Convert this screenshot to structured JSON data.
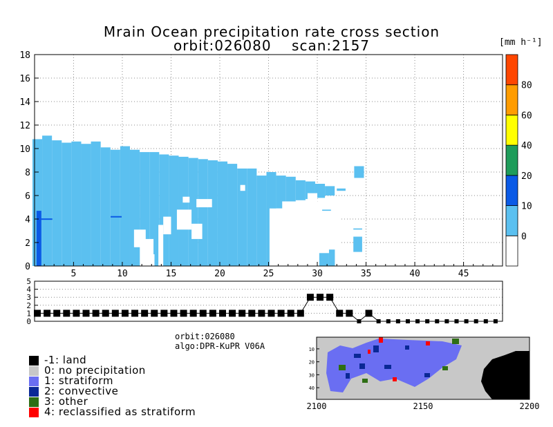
{
  "title_line1": "Mrain Ocean precipitation rate cross section",
  "title_line2": "orbit:026080    scan:2157",
  "colorbar": {
    "unit": "[mm h⁻¹]",
    "bands": [
      {
        "from": -10,
        "to": 0,
        "color": "#ffffff"
      },
      {
        "from": 0,
        "to": 10,
        "color": "#5bc0f0"
      },
      {
        "from": 10,
        "to": 20,
        "color": "#0a5ae6"
      },
      {
        "from": 20,
        "to": 40,
        "color": "#1e9c5a"
      },
      {
        "from": 40,
        "to": 60,
        "color": "#ffff00"
      },
      {
        "from": 60,
        "to": 80,
        "color": "#ff9c00"
      },
      {
        "from": 80,
        "to": 100,
        "color": "#ff4600"
      }
    ],
    "labels": [
      "0",
      "10",
      "20",
      "40",
      "60",
      "80"
    ],
    "label_values": [
      0,
      10,
      20,
      40,
      60,
      80
    ]
  },
  "chart_data": [
    {
      "type": "heatmap",
      "title": "Mrain Ocean precipitation rate cross section",
      "xlabel": "",
      "ylabel": "",
      "xlim": [
        1,
        49
      ],
      "ylim": [
        0,
        18
      ],
      "xticks": [
        5,
        10,
        15,
        20,
        25,
        30,
        35,
        40,
        45
      ],
      "yticks": [
        0,
        2,
        4,
        6,
        8,
        10,
        12,
        14,
        16,
        18
      ],
      "grid": true,
      "columns": [
        {
          "x": 1,
          "top": 10.8,
          "bottom": 0
        },
        {
          "x": 2,
          "top": 11.1,
          "bottom": 0
        },
        {
          "x": 3,
          "top": 10.7,
          "bottom": 0
        },
        {
          "x": 4,
          "top": 10.5,
          "bottom": 0
        },
        {
          "x": 5,
          "top": 10.6,
          "bottom": 0
        },
        {
          "x": 6,
          "top": 10.4,
          "bottom": 0
        },
        {
          "x": 7,
          "top": 10.6,
          "bottom": 0
        },
        {
          "x": 8,
          "top": 10.1,
          "bottom": 0
        },
        {
          "x": 9,
          "top": 9.9,
          "bottom": 0
        },
        {
          "x": 10,
          "top": 10.2,
          "bottom": 0
        },
        {
          "x": 11,
          "top": 9.9,
          "bottom": 0
        },
        {
          "x": 12,
          "top": 9.7,
          "bottom": 0
        },
        {
          "x": 13,
          "top": 9.7,
          "bottom": 0
        },
        {
          "x": 14,
          "top": 9.5,
          "bottom": 0
        },
        {
          "x": 15,
          "top": 9.4,
          "bottom": 0
        },
        {
          "x": 16,
          "top": 9.3,
          "bottom": 0
        },
        {
          "x": 17,
          "top": 9.2,
          "bottom": 0
        },
        {
          "x": 18,
          "top": 9.1,
          "bottom": 0
        },
        {
          "x": 19,
          "top": 9.0,
          "bottom": 0
        },
        {
          "x": 20,
          "top": 8.9,
          "bottom": 0
        },
        {
          "x": 21,
          "top": 8.7,
          "bottom": 0
        },
        {
          "x": 22,
          "top": 8.3,
          "bottom": 0
        },
        {
          "x": 23,
          "top": 8.3,
          "bottom": 0
        },
        {
          "x": 24,
          "top": 7.7,
          "bottom": 0
        },
        {
          "x": 25,
          "top": 8.0,
          "bottom": 0
        },
        {
          "x": 26,
          "top": 7.7,
          "bottom": 4.9
        },
        {
          "x": 27,
          "top": 7.6,
          "bottom": 5.5
        },
        {
          "x": 28,
          "top": 7.3,
          "bottom": 5.6
        },
        {
          "x": 29,
          "top": 7.2,
          "bottom": 5.7
        },
        {
          "x": 30,
          "top": 7.0,
          "bottom": 5.8
        },
        {
          "x": 31,
          "top": 6.8,
          "bottom": 6.0
        },
        {
          "x": 34,
          "top": 8.5,
          "bottom": 7.5
        }
      ],
      "features": {
        "convective_x": 1.3,
        "convective_top": 4.7,
        "rain_regions": [
          {
            "x": [
              1,
              34
            ],
            "y": [
              0,
              11
            ]
          }
        ]
      }
    },
    {
      "type": "line",
      "title": "",
      "xlim": [
        1,
        49
      ],
      "ylim": [
        0,
        5
      ],
      "yticks": [
        0,
        1,
        2,
        3,
        4,
        5
      ],
      "x": [
        1,
        2,
        3,
        4,
        5,
        6,
        7,
        8,
        9,
        10,
        11,
        12,
        13,
        14,
        15,
        16,
        17,
        18,
        19,
        20,
        21,
        22,
        23,
        24,
        25,
        26,
        27,
        28,
        29,
        30,
        31,
        32,
        33,
        34,
        35,
        36,
        37,
        38,
        39,
        40,
        41,
        42,
        43,
        44,
        45,
        46,
        47,
        48
      ],
      "values": [
        1,
        1,
        1,
        1,
        1,
        1,
        1,
        1,
        1,
        1,
        1,
        1,
        1,
        1,
        1,
        1,
        1,
        1,
        1,
        1,
        1,
        1,
        1,
        1,
        1,
        1,
        1,
        1,
        3,
        3,
        3,
        1,
        1,
        0,
        1,
        0,
        0,
        0,
        0,
        0,
        0,
        0,
        0,
        0,
        0,
        0,
        0,
        0
      ]
    },
    {
      "type": "heatmap",
      "title": "",
      "xlim": [
        2100,
        2200
      ],
      "ylim": [
        49,
        1
      ],
      "xticks": [
        2100,
        2150,
        2200
      ],
      "yticks": [
        10,
        20,
        30,
        40
      ]
    }
  ],
  "info": {
    "orbit": "orbit:026080",
    "algo": "algo:DPR-KuPR V06A"
  },
  "legend": [
    {
      "label": "-1: land",
      "color": "#000000"
    },
    {
      "label": "0: no precipitation",
      "color": "#c8c8c8"
    },
    {
      "label": "1: stratiform",
      "color": "#6a6ef2"
    },
    {
      "label": "2: convective",
      "color": "#0a2896"
    },
    {
      "label": "3: other",
      "color": "#2e6e14"
    },
    {
      "label": "4: reclassified as stratiform",
      "color": "#ff0000"
    }
  ]
}
